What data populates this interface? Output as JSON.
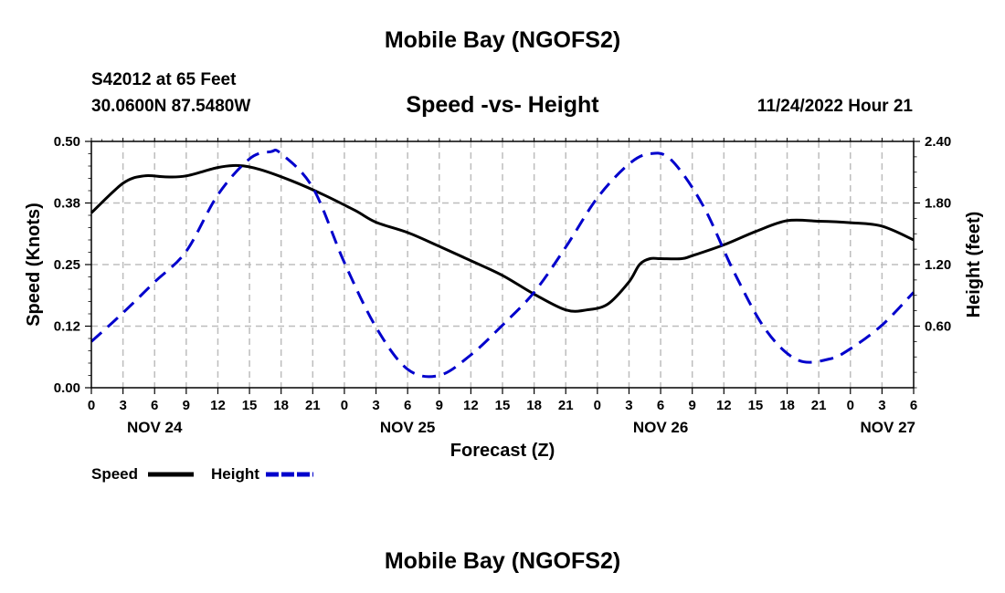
{
  "page": {
    "title": "Mobile Bay (NGOFS2)",
    "station": "S42012 at 65 Feet",
    "coords": "30.0600N  87.5480W",
    "subtitle": "Speed -vs- Height",
    "timestamp": "11/24/2022 Hour 21",
    "footer_title": "Mobile Bay (NGOFS2)"
  },
  "chart_data": {
    "type": "line",
    "title": "Speed -vs- Height",
    "xlabel": "Forecast (Z)",
    "ylabel": "Speed (Knots)",
    "y2label": "Height (feet)",
    "x_ticks": [
      "0",
      "3",
      "6",
      "9",
      "12",
      "15",
      "18",
      "21",
      "0",
      "3",
      "6",
      "9",
      "12",
      "15",
      "18",
      "21",
      "0",
      "3",
      "6",
      "9",
      "12",
      "15",
      "18",
      "21",
      "0",
      "3",
      "6"
    ],
    "date_labels": [
      {
        "label": "NOV 24",
        "hour": 6
      },
      {
        "label": "NOV 25",
        "hour": 30
      },
      {
        "label": "NOV 26",
        "hour": 54
      },
      {
        "label": "NOV 27",
        "hour": 78
      }
    ],
    "xlim": [
      0,
      78
    ],
    "ylim": [
      0,
      0.5
    ],
    "y_ticks": [
      "0.00",
      "0.12",
      "0.25",
      "0.38",
      "0.50"
    ],
    "y_tick_values": [
      0,
      0.125,
      0.25,
      0.375,
      0.5
    ],
    "y2lim": [
      0,
      2.4
    ],
    "y2_ticks": [
      "0.60",
      "1.20",
      "1.80",
      "2.40"
    ],
    "y2_tick_values": [
      0.6,
      1.2,
      1.8,
      2.4
    ],
    "grid": true,
    "legend": "bottom-left",
    "series": [
      {
        "name": "Speed",
        "axis": "left",
        "color": "#000000",
        "style": "solid",
        "x": [
          0,
          3,
          5,
          7,
          9,
          12,
          14,
          16,
          19,
          22,
          25,
          27,
          30,
          33,
          36,
          39,
          42,
          45,
          47,
          49,
          51,
          52,
          53,
          54,
          56,
          57,
          60,
          63,
          66,
          69,
          72,
          75,
          78
        ],
        "values": [
          0.355,
          0.415,
          0.43,
          0.428,
          0.43,
          0.447,
          0.451,
          0.443,
          0.42,
          0.392,
          0.36,
          0.336,
          0.315,
          0.287,
          0.258,
          0.228,
          0.19,
          0.158,
          0.158,
          0.17,
          0.215,
          0.25,
          0.262,
          0.262,
          0.262,
          0.268,
          0.29,
          0.317,
          0.339,
          0.338,
          0.335,
          0.328,
          0.3
        ]
      },
      {
        "name": "Height",
        "axis": "right",
        "color": "#0000cc",
        "style": "dashed",
        "x": [
          0,
          3,
          6,
          9,
          12,
          15,
          17,
          18,
          21,
          24,
          27,
          30,
          33,
          36,
          39,
          42,
          45,
          48,
          51,
          53,
          55,
          58,
          61,
          64,
          67,
          70,
          72,
          75,
          78
        ],
        "values": [
          0.45,
          0.73,
          1.03,
          1.33,
          1.88,
          2.23,
          2.3,
          2.28,
          1.95,
          1.22,
          0.59,
          0.18,
          0.12,
          0.32,
          0.61,
          0.93,
          1.37,
          1.85,
          2.18,
          2.28,
          2.22,
          1.78,
          1.12,
          0.56,
          0.27,
          0.28,
          0.38,
          0.61,
          0.93
        ]
      }
    ]
  }
}
